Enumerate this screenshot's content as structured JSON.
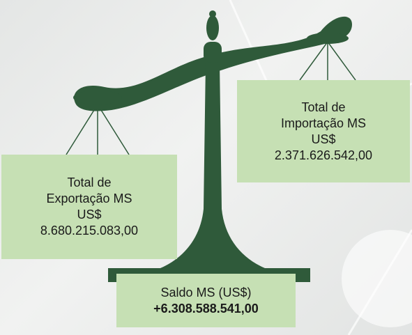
{
  "export": {
    "label_lines": [
      "Total de",
      "Exportação MS",
      "US$"
    ],
    "value": "8.680.215.083,00"
  },
  "import": {
    "label_lines": [
      "Total de",
      "Importação MS",
      "US$"
    ],
    "value": "2.371.626.542,00"
  },
  "balance": {
    "label": "Saldo MS (US$)",
    "value": "+6.308.588.541,00"
  }
}
